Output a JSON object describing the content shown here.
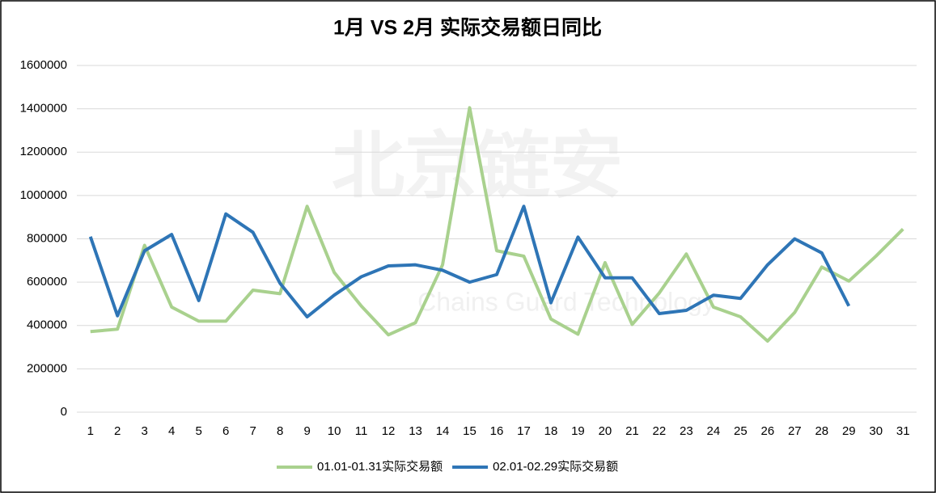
{
  "chart_data": {
    "type": "line",
    "title": "1月 VS 2月 实际交易额日同比",
    "watermark": "北京链安",
    "watermark_subtitle": "Chains Guard Technology",
    "categories": [
      "1",
      "2",
      "3",
      "4",
      "5",
      "6",
      "7",
      "8",
      "9",
      "10",
      "11",
      "12",
      "13",
      "14",
      "15",
      "16",
      "17",
      "18",
      "19",
      "20",
      "21",
      "22",
      "23",
      "24",
      "25",
      "26",
      "27",
      "28",
      "29",
      "30",
      "31"
    ],
    "series": [
      {
        "name": "01.01-01.31实际交易额",
        "color": "#a9d18e",
        "values": [
          372000,
          383000,
          770000,
          485000,
          420000,
          420000,
          563000,
          547000,
          950000,
          645000,
          490000,
          357000,
          413000,
          680000,
          1405000,
          745000,
          720000,
          430000,
          360000,
          690000,
          405000,
          550000,
          730000,
          485000,
          440000,
          328000,
          460000,
          670000,
          605000,
          720000,
          845000
        ]
      },
      {
        "name": "02.01-02.29实际交易额",
        "color": "#2e75b6",
        "values": [
          810000,
          445000,
          745000,
          820000,
          515000,
          915000,
          830000,
          595000,
          440000,
          540000,
          625000,
          675000,
          680000,
          655000,
          600000,
          635000,
          950000,
          505000,
          808000,
          620000,
          620000,
          455000,
          470000,
          540000,
          525000,
          680000,
          800000,
          735000,
          490000,
          null,
          null
        ]
      }
    ],
    "ylim": [
      0,
      1600000
    ],
    "yticks": [
      0,
      200000,
      400000,
      600000,
      800000,
      1000000,
      1200000,
      1400000,
      1600000
    ],
    "grid": true,
    "legend": "bottom"
  }
}
